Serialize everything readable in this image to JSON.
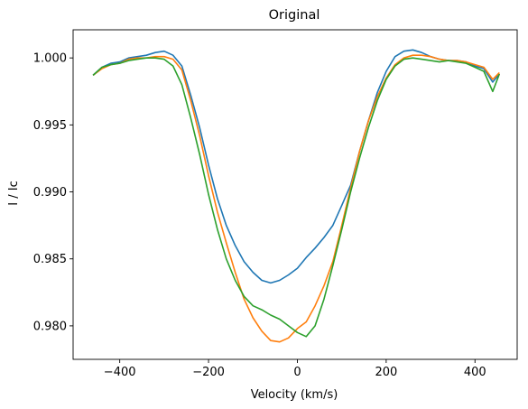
{
  "chart_data": {
    "type": "line",
    "title": "Original",
    "xlabel": "Velocity (km/s)",
    "ylabel": "I / Ic",
    "xlim": [
      -505,
      495
    ],
    "ylim": [
      0.9775,
      1.0021
    ],
    "xticks": [
      -400,
      -200,
      0,
      200,
      400
    ],
    "xtick_labels": [
      "−400",
      "−200",
      "0",
      "200",
      "400"
    ],
    "yticks": [
      0.98,
      0.985,
      0.99,
      0.995,
      1.0
    ],
    "ytick_labels": [
      "0.980",
      "0.985",
      "0.990",
      "0.995",
      "1.000"
    ],
    "grid": false,
    "legend": "none",
    "series": [
      {
        "color": "#1f77b4",
        "x": [
          -460,
          -440,
          -420,
          -400,
          -380,
          -360,
          -340,
          -320,
          -300,
          -280,
          -260,
          -240,
          -220,
          -200,
          -180,
          -160,
          -140,
          -120,
          -100,
          -80,
          -60,
          -40,
          -20,
          0,
          20,
          40,
          60,
          80,
          100,
          120,
          140,
          160,
          180,
          200,
          220,
          240,
          260,
          280,
          300,
          320,
          340,
          360,
          380,
          400,
          420,
          440,
          455
        ],
        "y": [
          0.9987,
          0.9993,
          0.9996,
          0.9997,
          1.0,
          1.0001,
          1.0002,
          1.0004,
          1.0005,
          1.0002,
          0.9994,
          0.9972,
          0.9948,
          0.992,
          0.9895,
          0.9875,
          0.986,
          0.9848,
          0.984,
          0.9834,
          0.9832,
          0.9834,
          0.9838,
          0.9843,
          0.9851,
          0.9858,
          0.9866,
          0.9875,
          0.989,
          0.9905,
          0.993,
          0.9953,
          0.9974,
          0.999,
          1.0001,
          1.0005,
          1.0006,
          1.0004,
          1.0001,
          0.9999,
          0.9998,
          0.9998,
          0.9997,
          0.9994,
          0.9992,
          0.9982,
          0.9988
        ]
      },
      {
        "color": "#ff7f0e",
        "x": [
          -460,
          -440,
          -420,
          -400,
          -380,
          -360,
          -340,
          -320,
          -300,
          -280,
          -260,
          -240,
          -220,
          -200,
          -180,
          -160,
          -140,
          -120,
          -100,
          -80,
          -60,
          -40,
          -20,
          0,
          20,
          40,
          60,
          80,
          100,
          120,
          140,
          160,
          180,
          200,
          220,
          240,
          260,
          280,
          300,
          320,
          340,
          360,
          380,
          400,
          420,
          440,
          455
        ],
        "y": [
          0.9987,
          0.9992,
          0.9995,
          0.9996,
          0.9999,
          1.0,
          1.0,
          1.0001,
          1.0001,
          0.9999,
          0.9991,
          0.9968,
          0.9942,
          0.9912,
          0.9885,
          0.9862,
          0.984,
          0.982,
          0.9806,
          0.9796,
          0.9789,
          0.9788,
          0.9791,
          0.9798,
          0.9803,
          0.9815,
          0.983,
          0.9848,
          0.9875,
          0.9903,
          0.993,
          0.9953,
          0.9971,
          0.9985,
          0.9995,
          1.0,
          1.0002,
          1.0002,
          1.0001,
          0.9999,
          0.9998,
          0.9998,
          0.9997,
          0.9995,
          0.9993,
          0.9984,
          0.9989
        ]
      },
      {
        "color": "#2ca02c",
        "x": [
          -460,
          -440,
          -420,
          -400,
          -380,
          -360,
          -340,
          -320,
          -300,
          -280,
          -260,
          -240,
          -220,
          -200,
          -180,
          -160,
          -140,
          -120,
          -100,
          -80,
          -60,
          -40,
          -20,
          0,
          20,
          40,
          60,
          80,
          100,
          120,
          140,
          160,
          180,
          200,
          220,
          240,
          260,
          280,
          300,
          320,
          340,
          360,
          380,
          400,
          420,
          440,
          455
        ],
        "y": [
          0.9987,
          0.9993,
          0.9995,
          0.9996,
          0.9998,
          0.9999,
          1.0,
          1.0,
          0.9999,
          0.9994,
          0.998,
          0.9955,
          0.9928,
          0.9898,
          0.9872,
          0.985,
          0.9834,
          0.9822,
          0.9815,
          0.9812,
          0.9808,
          0.9805,
          0.98,
          0.9795,
          0.9792,
          0.98,
          0.982,
          0.9845,
          0.9872,
          0.99,
          0.9925,
          0.9948,
          0.9968,
          0.9984,
          0.9994,
          0.9999,
          1.0,
          0.9999,
          0.9998,
          0.9997,
          0.9998,
          0.9997,
          0.9996,
          0.9993,
          0.999,
          0.9975,
          0.9988
        ]
      }
    ]
  }
}
